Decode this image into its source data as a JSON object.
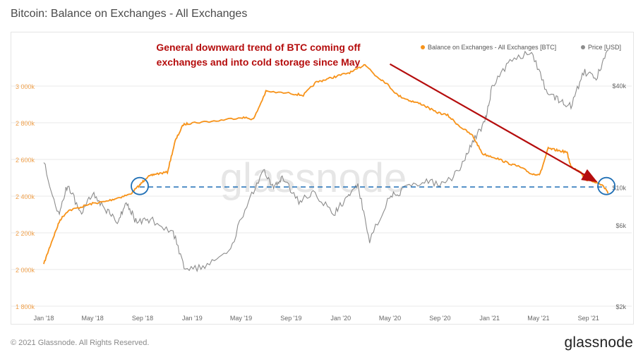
{
  "header": {
    "title": "Bitcoin: Balance on Exchanges - All Exchanges"
  },
  "annotation": {
    "line1": "General downward trend of BTC coming off",
    "line2": "exchanges and into cold storage since May"
  },
  "watermark": "glassnode",
  "footer": {
    "copyright": "© 2021 Glassnode. All Rights Reserved.",
    "logo": "glassnode"
  },
  "colors": {
    "balance": "#f7931a",
    "price": "#8c8c8c",
    "annotation": "#b50d0d",
    "marker": "#1f6fb5",
    "grid": "#e8e8e8",
    "axis_left": "#f0a04b",
    "axis_right": "#666666"
  },
  "chart_data": {
    "type": "line",
    "title": "Bitcoin: Balance on Exchanges - All Exchanges",
    "x_ticks": [
      "Jan '18",
      "May '18",
      "Sep '18",
      "Jan '19",
      "May '19",
      "Sep '19",
      "Jan '20",
      "May '20",
      "Sep '20",
      "Jan '21",
      "May '21",
      "Sep '21"
    ],
    "x_range": [
      "2018-01-01",
      "2021-10-20"
    ],
    "y_left": {
      "ticks": [
        "1 800k",
        "2 000k",
        "2 200k",
        "2 400k",
        "2 600k",
        "2 800k",
        "3 000k"
      ],
      "range": [
        1800000,
        3200000
      ]
    },
    "y_right": {
      "scale": "log",
      "ticks": [
        "$2k",
        "$6k",
        "$10k",
        "$40k"
      ],
      "tick_values": [
        2000,
        6000,
        10000,
        40000
      ],
      "range": [
        2000,
        65000
      ]
    },
    "legend": {
      "placement": "top-right",
      "entries": [
        "Balance on Exchanges - All Exchanges [BTC]",
        "Price [USD]"
      ]
    },
    "series": [
      {
        "name": "Balance on Exchanges - All Exchanges [BTC]",
        "axis": "left",
        "points": [
          [
            "2018-01-01",
            2030000
          ],
          [
            "2018-01-20",
            2150000
          ],
          [
            "2018-02-10",
            2270000
          ],
          [
            "2018-03-01",
            2320000
          ],
          [
            "2018-04-01",
            2340000
          ],
          [
            "2018-05-01",
            2360000
          ],
          [
            "2018-06-01",
            2370000
          ],
          [
            "2018-07-01",
            2390000
          ],
          [
            "2018-08-01",
            2410000
          ],
          [
            "2018-08-25",
            2460000
          ],
          [
            "2018-09-10",
            2500000
          ],
          [
            "2018-10-01",
            2520000
          ],
          [
            "2018-11-01",
            2530000
          ],
          [
            "2018-11-20",
            2700000
          ],
          [
            "2018-12-10",
            2790000
          ],
          [
            "2019-01-01",
            2800000
          ],
          [
            "2019-03-01",
            2810000
          ],
          [
            "2019-05-01",
            2830000
          ],
          [
            "2019-06-01",
            2820000
          ],
          [
            "2019-07-01",
            2970000
          ],
          [
            "2019-09-01",
            2960000
          ],
          [
            "2019-10-01",
            2950000
          ],
          [
            "2019-11-01",
            3020000
          ],
          [
            "2019-12-01",
            3040000
          ],
          [
            "2020-01-01",
            3060000
          ],
          [
            "2020-02-01",
            3080000
          ],
          [
            "2020-03-01",
            3120000
          ],
          [
            "2020-03-25",
            3060000
          ],
          [
            "2020-04-20",
            3020000
          ],
          [
            "2020-05-20",
            2950000
          ],
          [
            "2020-06-20",
            2920000
          ],
          [
            "2020-07-20",
            2900000
          ],
          [
            "2020-08-20",
            2860000
          ],
          [
            "2020-09-20",
            2840000
          ],
          [
            "2020-10-20",
            2780000
          ],
          [
            "2020-11-20",
            2730000
          ],
          [
            "2020-12-15",
            2630000
          ],
          [
            "2021-01-15",
            2610000
          ],
          [
            "2021-02-15",
            2580000
          ],
          [
            "2021-03-15",
            2560000
          ],
          [
            "2021-04-15",
            2520000
          ],
          [
            "2021-05-05",
            2520000
          ],
          [
            "2021-05-25",
            2660000
          ],
          [
            "2021-06-15",
            2650000
          ],
          [
            "2021-07-10",
            2640000
          ],
          [
            "2021-07-20",
            2560000
          ],
          [
            "2021-08-10",
            2540000
          ],
          [
            "2021-08-25",
            2490000
          ],
          [
            "2021-09-15",
            2480000
          ],
          [
            "2021-10-05",
            2460000
          ],
          [
            "2021-10-20",
            2420000
          ]
        ]
      },
      {
        "name": "Price [USD]",
        "axis": "right",
        "points": [
          [
            "2018-01-01",
            14000
          ],
          [
            "2018-02-06",
            7000
          ],
          [
            "2018-03-01",
            10500
          ],
          [
            "2018-04-01",
            7000
          ],
          [
            "2018-05-01",
            9300
          ],
          [
            "2018-06-01",
            7500
          ],
          [
            "2018-07-01",
            6300
          ],
          [
            "2018-07-25",
            8200
          ],
          [
            "2018-08-15",
            6300
          ],
          [
            "2018-09-20",
            6500
          ],
          [
            "2018-11-15",
            5500
          ],
          [
            "2018-12-15",
            3300
          ],
          [
            "2019-02-01",
            3400
          ],
          [
            "2019-04-01",
            4100
          ],
          [
            "2019-05-15",
            8000
          ],
          [
            "2019-06-25",
            12500
          ],
          [
            "2019-07-20",
            9800
          ],
          [
            "2019-08-10",
            11500
          ],
          [
            "2019-09-20",
            8300
          ],
          [
            "2019-10-25",
            9300
          ],
          [
            "2019-12-15",
            7000
          ],
          [
            "2020-01-15",
            8700
          ],
          [
            "2020-02-12",
            10300
          ],
          [
            "2020-03-12",
            4900
          ],
          [
            "2020-04-30",
            8800
          ],
          [
            "2020-06-01",
            9600
          ],
          [
            "2020-07-25",
            11000
          ],
          [
            "2020-09-10",
            10300
          ],
          [
            "2020-10-20",
            12800
          ],
          [
            "2020-11-20",
            18500
          ],
          [
            "2020-12-20",
            24000
          ],
          [
            "2021-01-08",
            40000
          ],
          [
            "2021-02-20",
            55000
          ],
          [
            "2021-04-14",
            63000
          ],
          [
            "2021-05-20",
            37000
          ],
          [
            "2021-06-20",
            33000
          ],
          [
            "2021-07-20",
            30000
          ],
          [
            "2021-08-20",
            48000
          ],
          [
            "2021-09-20",
            44000
          ],
          [
            "2021-10-20",
            64000
          ]
        ]
      }
    ],
    "annotation_arrow": {
      "from": [
        "2020-05-01",
        3120000
      ],
      "to": [
        "2021-09-20",
        2480000
      ]
    },
    "reference_line": {
      "style": "dashed",
      "y": 2450000,
      "x_range": [
        "2018-08-25",
        "2021-10-15"
      ]
    },
    "markers": [
      {
        "type": "circle",
        "x": "2018-08-25",
        "y": 2455000
      },
      {
        "type": "circle",
        "x": "2021-10-15",
        "y": 2455000
      }
    ]
  }
}
